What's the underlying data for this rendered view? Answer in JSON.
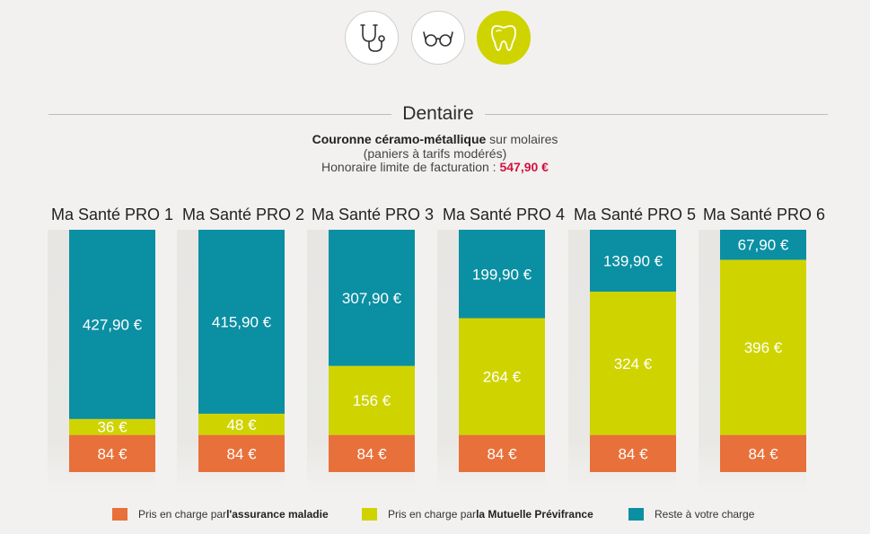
{
  "icons": [
    {
      "name": "stethoscope-icon",
      "active": false
    },
    {
      "name": "glasses-icon",
      "active": false
    },
    {
      "name": "tooth-icon",
      "active": true
    }
  ],
  "section": {
    "title": "Dentaire",
    "desc_bold": "Couronne céramo-métallique",
    "desc_rest": " sur molaires",
    "desc_line2": "(paniers à tarifs modérés)",
    "desc_line3": "Honoraire limite de facturation : ",
    "desc_price": "547,90 €"
  },
  "colors": {
    "assurance": "#e8703a",
    "mutuelle": "#cfd400",
    "reste": "#0b8fa3",
    "accent": "#d1123f"
  },
  "legend": {
    "assurance_prefix": "Pris en charge par ",
    "assurance_bold": "l'assurance maladie",
    "mutuelle_prefix": "Pris en charge par ",
    "mutuelle_bold": "la Mutuelle Prévifrance",
    "reste": "Reste à votre charge"
  },
  "chart_data": {
    "type": "bar",
    "stacked": true,
    "total": 547.9,
    "categories": [
      "Ma Santé PRO 1",
      "Ma Santé PRO 2",
      "Ma Santé PRO 3",
      "Ma Santé PRO 4",
      "Ma Santé PRO 5",
      "Ma Santé PRO 6"
    ],
    "series": [
      {
        "name": "Pris en charge par l'assurance maladie",
        "key": "assurance",
        "values": [
          84,
          84,
          84,
          84,
          84,
          84
        ],
        "labels": [
          "84 €",
          "84 €",
          "84 €",
          "84 €",
          "84 €",
          "84 €"
        ]
      },
      {
        "name": "Pris en charge par la Mutuelle Prévifrance",
        "key": "mutuelle",
        "values": [
          36,
          48,
          156,
          264,
          324,
          396
        ],
        "labels": [
          "36 €",
          "48 €",
          "156 €",
          "264 €",
          "324 €",
          "396 €"
        ]
      },
      {
        "name": "Reste à votre charge",
        "key": "reste",
        "values": [
          427.9,
          415.9,
          307.9,
          199.9,
          139.9,
          67.9
        ],
        "labels": [
          "427,90 €",
          "415,90 €",
          "307,90 €",
          "199,90 €",
          "139,90 €",
          "67,90 €"
        ]
      }
    ]
  }
}
